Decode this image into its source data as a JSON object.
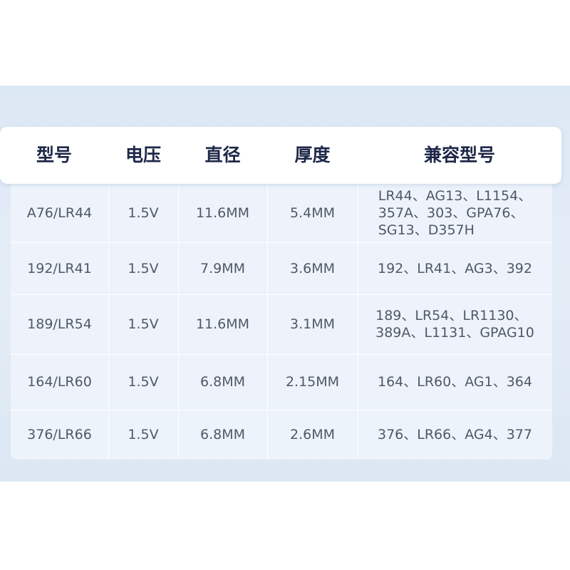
{
  "table": {
    "headers": [
      "型号",
      "电压",
      "直径",
      "厚度",
      "兼容型号"
    ],
    "rows": [
      {
        "model": "A76/LR44",
        "voltage": "1.5V",
        "diameter": "11.6MM",
        "thickness": "5.4MM",
        "compatible": "LR44、AG13、L1154、\n357A、303、GPA76、\nSG13、D357H"
      },
      {
        "model": "192/LR41",
        "voltage": "1.5V",
        "diameter": "7.9MM",
        "thickness": "3.6MM",
        "compatible": "192、LR41、AG3、392"
      },
      {
        "model": "189/LR54",
        "voltage": "1.5V",
        "diameter": "11.6MM",
        "thickness": "3.1MM",
        "compatible": "189、LR54、LR1130、\n389A、L1131、GPAG10"
      },
      {
        "model": "164/LR60",
        "voltage": "1.5V",
        "diameter": "6.8MM",
        "thickness": "2.15MM",
        "compatible": "164、LR60、AG1、364"
      },
      {
        "model": "376/LR66",
        "voltage": "1.5V",
        "diameter": "6.8MM",
        "thickness": "2.6MM",
        "compatible": "376、LR66、AG4、377"
      }
    ]
  }
}
